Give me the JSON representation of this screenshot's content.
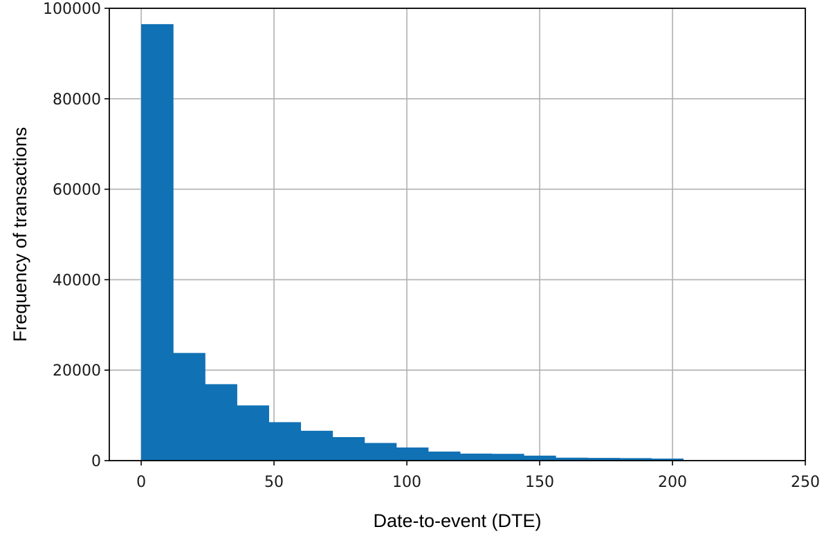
{
  "chart_data": {
    "type": "bar",
    "title": "",
    "xlabel": "Date-to-event (DTE)",
    "ylabel": "Frequency of transactions",
    "bin_edges": [
      0,
      12,
      24,
      36,
      48,
      60,
      72,
      84,
      96,
      108,
      120,
      132,
      144,
      156,
      168,
      180,
      192,
      204
    ],
    "values": [
      96500,
      23800,
      16900,
      12200,
      8500,
      6600,
      5200,
      3900,
      2900,
      2000,
      1550,
      1500,
      1100,
      650,
      600,
      550,
      450
    ],
    "xlim": [
      -12,
      250
    ],
    "ylim": [
      0,
      100000
    ],
    "xticks": [
      0,
      50,
      100,
      150,
      200,
      250
    ],
    "yticks": [
      0,
      20000,
      40000,
      60000,
      80000,
      100000
    ],
    "grid": true,
    "legend": "none",
    "bar_color": "#1071b5"
  }
}
